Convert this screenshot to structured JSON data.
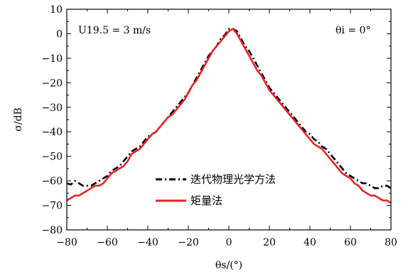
{
  "chart_data": {
    "type": "line",
    "xlabel": "θs/(°)",
    "ylabel": "σ/dB",
    "xlim": [
      -80,
      80
    ],
    "ylim": [
      -80,
      10
    ],
    "xticks": [
      -80,
      -60,
      -40,
      -20,
      0,
      20,
      40,
      60,
      80
    ],
    "yticks": [
      10,
      0,
      -10,
      -20,
      -30,
      -40,
      -50,
      -60,
      -70,
      -80
    ],
    "xtick_labels": [
      "−80",
      "−60",
      "−40",
      "−20",
      "0",
      "20",
      "40",
      "60",
      "80"
    ],
    "ytick_labels": [
      "10",
      "0",
      "−10",
      "−20",
      "−30",
      "−40",
      "−50",
      "−60",
      "−70",
      "−80"
    ],
    "annotations": {
      "wind_speed": "U19.5 = 3 m/s",
      "incidence": "θi = 0°"
    },
    "legend_position": "lower-center",
    "grid": false,
    "series": [
      {
        "name": "迭代物理光学方法",
        "color": "#000000",
        "style": "dash-dot",
        "x": [
          -80,
          -78,
          -76,
          -74,
          -72,
          -70,
          -68,
          -66,
          -64,
          -62,
          -60,
          -58,
          -56,
          -54,
          -52,
          -50,
          -48,
          -46,
          -44,
          -42,
          -40,
          -38,
          -36,
          -34,
          -32,
          -30,
          -28,
          -26,
          -24,
          -22,
          -20,
          -18,
          -16,
          -14,
          -12,
          -10,
          -8,
          -6,
          -4,
          -2,
          0,
          2,
          4,
          6,
          8,
          10,
          12,
          14,
          16,
          18,
          20,
          22,
          24,
          26,
          28,
          30,
          32,
          34,
          36,
          38,
          40,
          42,
          44,
          46,
          48,
          50,
          52,
          54,
          56,
          58,
          60,
          62,
          64,
          66,
          68,
          70,
          72,
          74,
          76,
          78,
          80
        ],
        "y": [
          -61,
          -61.5,
          -60,
          -61,
          -62,
          -62,
          -62,
          -61,
          -60,
          -59,
          -58,
          -56,
          -55,
          -54,
          -52,
          -50,
          -48,
          -47,
          -46,
          -44,
          -42,
          -41,
          -40,
          -38,
          -36,
          -34,
          -32,
          -30,
          -28,
          -26,
          -24,
          -21,
          -18,
          -15,
          -12,
          -9,
          -7,
          -5,
          -2,
          -0.5,
          2,
          2,
          1,
          -2,
          -5,
          -7,
          -10,
          -13,
          -16,
          -19,
          -22,
          -24,
          -26,
          -28,
          -30,
          -32,
          -34,
          -36,
          -38,
          -40,
          -41,
          -43,
          -44,
          -46,
          -47,
          -49,
          -51,
          -53,
          -55,
          -57,
          -58,
          -59,
          -60,
          -61,
          -61,
          -62,
          -63,
          -63,
          -62,
          -62,
          -63
        ]
      },
      {
        "name": "矩量法",
        "color": "#e8232a",
        "style": "solid",
        "x": [
          -80,
          -78,
          -76,
          -74,
          -72,
          -70,
          -68,
          -66,
          -64,
          -62,
          -60,
          -58,
          -56,
          -54,
          -52,
          -50,
          -48,
          -46,
          -44,
          -42,
          -40,
          -38,
          -36,
          -34,
          -32,
          -30,
          -28,
          -26,
          -24,
          -22,
          -20,
          -18,
          -16,
          -14,
          -12,
          -10,
          -8,
          -6,
          -4,
          -2,
          0,
          2,
          4,
          6,
          8,
          10,
          12,
          14,
          16,
          18,
          20,
          22,
          24,
          26,
          28,
          30,
          32,
          34,
          36,
          38,
          40,
          42,
          44,
          46,
          48,
          50,
          52,
          54,
          56,
          58,
          60,
          62,
          64,
          66,
          68,
          70,
          72,
          74,
          76,
          78,
          80
        ],
        "y": [
          -68,
          -67,
          -66,
          -66,
          -65,
          -64,
          -63,
          -62,
          -62,
          -61,
          -59,
          -57,
          -56,
          -55,
          -54,
          -52,
          -49,
          -48,
          -47,
          -45,
          -43,
          -41,
          -40,
          -38,
          -36,
          -34,
          -33,
          -31,
          -29,
          -27,
          -24,
          -21,
          -19,
          -16,
          -13,
          -10,
          -7,
          -5,
          -3,
          -1,
          1,
          2,
          0,
          -3,
          -6,
          -9,
          -12,
          -15,
          -17,
          -20,
          -23,
          -25,
          -27,
          -29,
          -31,
          -33,
          -35,
          -37,
          -39,
          -41,
          -43,
          -45,
          -46,
          -47,
          -49,
          -51,
          -53,
          -55,
          -57,
          -58,
          -59,
          -61,
          -62,
          -64,
          -65,
          -66,
          -66,
          -67,
          -68,
          -68,
          -69
        ]
      }
    ]
  }
}
